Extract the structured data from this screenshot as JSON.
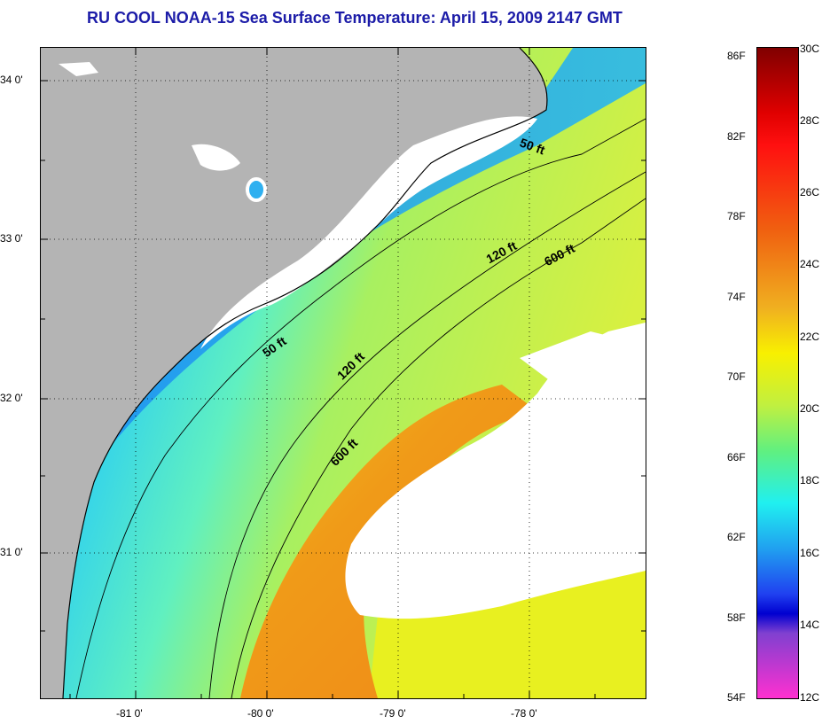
{
  "title": "RU COOL  NOAA-15  Sea Surface Temperature:  April 15, 2009 2147 GMT",
  "lat_labels": [
    "34 0'",
    "33 0'",
    "32 0'",
    "31 0'"
  ],
  "lon_labels": [
    "-81 0'",
    "-80 0'",
    "-79 0'",
    "-78 0'"
  ],
  "isobaths": {
    "inner": "50 ft",
    "middle": "120 ft",
    "outer": "600 ft"
  },
  "colorbar": {
    "fahrenheit": [
      "86F",
      "82F",
      "78F",
      "74F",
      "70F",
      "66F",
      "62F",
      "58F",
      "54F"
    ],
    "celsius": [
      "30C",
      "28C",
      "26C",
      "24C",
      "22C",
      "20C",
      "18C",
      "16C",
      "14C",
      "12C"
    ]
  },
  "colors": {
    "land": "#b4b4b4",
    "cloud": "#ffffff",
    "title": "#1c1ca8"
  }
}
